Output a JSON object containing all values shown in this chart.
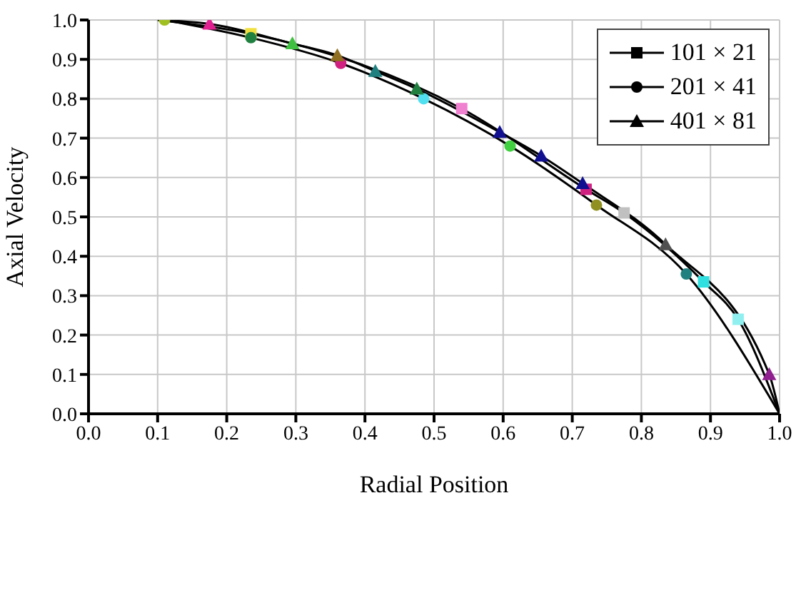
{
  "chart_data": {
    "type": "line",
    "xlabel": "Radial Position",
    "ylabel": "Axial Velocity",
    "xlim": [
      0,
      1
    ],
    "ylim": [
      0,
      1
    ],
    "xticks": [
      {
        "value": 0,
        "label": "0.0"
      },
      {
        "value": 0.1,
        "label": "0.1"
      },
      {
        "value": 0.2,
        "label": "0.2"
      },
      {
        "value": 0.3,
        "label": "0.3"
      },
      {
        "value": 0.4,
        "label": "0.4"
      },
      {
        "value": 0.5,
        "label": "0.5"
      },
      {
        "value": 0.6,
        "label": "0.6"
      },
      {
        "value": 0.7,
        "label": "0.7"
      },
      {
        "value": 0.8,
        "label": "0.8"
      },
      {
        "value": 0.9,
        "label": "0.9"
      },
      {
        "value": 1,
        "label": "1.0"
      }
    ],
    "yticks": [
      {
        "value": 0,
        "label": "0.0"
      },
      {
        "value": 0.1,
        "label": "0.1"
      },
      {
        "value": 0.2,
        "label": "0.2"
      },
      {
        "value": 0.3,
        "label": "0.3"
      },
      {
        "value": 0.4,
        "label": "0.4"
      },
      {
        "value": 0.5,
        "label": "0.5"
      },
      {
        "value": 0.6,
        "label": "0.6"
      },
      {
        "value": 0.7,
        "label": "0.7"
      },
      {
        "value": 0.8,
        "label": "0.8"
      },
      {
        "value": 0.9,
        "label": "0.9"
      },
      {
        "value": 1,
        "label": "1.0"
      }
    ],
    "grid": true,
    "legend": "top right",
    "series": [
      {
        "name": "101 × 21",
        "color": "#000000",
        "marker": "square",
        "x": [
          0.1,
          0.235,
          0.54,
          0.72,
          0.775,
          0.89,
          0.94,
          1.0
        ],
        "values": [
          1.0,
          0.965,
          0.775,
          0.57,
          0.51,
          0.335,
          0.24,
          0.0
        ],
        "colors": [
          null,
          "#f0e040",
          "#f080d0",
          "#d02080",
          "#c0c0c0",
          "#30e0e0",
          "#90f0f0",
          null
        ]
      },
      {
        "name": "201 × 41",
        "color": "#000000",
        "marker": "circle",
        "x": [
          0.11,
          0.235,
          0.365,
          0.485,
          0.61,
          0.735,
          0.865,
          1.0
        ],
        "values": [
          1.0,
          0.955,
          0.89,
          0.8,
          0.68,
          0.53,
          0.355,
          0.0
        ],
        "colors": [
          "#a0c020",
          "#208040",
          "#d02080",
          "#50e0f0",
          "#40d040",
          "#909020",
          "#208080",
          null
        ]
      },
      {
        "name": "401 × 81",
        "color": "#000000",
        "marker": "triangle",
        "x": [
          0.105,
          0.175,
          0.295,
          0.36,
          0.415,
          0.475,
          0.595,
          0.655,
          0.715,
          0.835,
          0.985,
          1.0
        ],
        "values": [
          1.0,
          0.99,
          0.94,
          0.91,
          0.87,
          0.825,
          0.715,
          0.655,
          0.585,
          0.43,
          0.1,
          0.0
        ],
        "colors": [
          null,
          "#e02090",
          "#40c040",
          "#907020",
          "#208080",
          "#208040",
          "#101090",
          "#101090",
          "#101090",
          "#505050",
          "#902090",
          null
        ]
      }
    ]
  }
}
